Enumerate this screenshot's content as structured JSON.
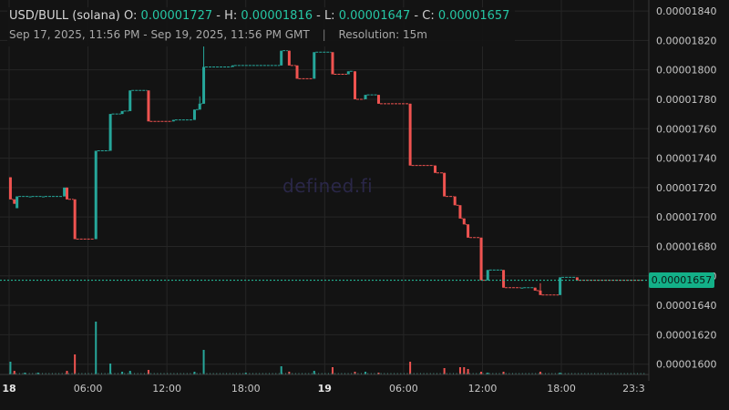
{
  "header": {
    "symbol": "USD/BULL (solana)",
    "open_label": "O:",
    "open": "0.00001727",
    "high_label": "H:",
    "high": "0.00001816",
    "low_label": "L:",
    "low": "0.00001647",
    "close_label": "C:",
    "close": "0.00001657",
    "range": "Sep 17, 2025, 11:56 PM - Sep 19, 2025, 11:56 PM GMT",
    "separator": "|",
    "resolution": "Resolution: 15m"
  },
  "watermark": "defined.fi",
  "last_price_label": "0.00001657",
  "colors": {
    "up": "#26a69a",
    "down": "#ef5350",
    "background": "#131313",
    "grid": "#262626"
  },
  "chart_data": {
    "type": "candlestick",
    "x_tick_labels": [
      "18",
      "06:00",
      "12:00",
      "18:00",
      "19",
      "06:00",
      "12:00",
      "18:00",
      "23:3"
    ],
    "y_tick_labels": [
      "0.00001600",
      "0.00001620",
      "0.00001640",
      "0.00001660",
      "0.00001680",
      "0.00001700",
      "0.00001720",
      "0.00001740",
      "0.00001760",
      "0.00001780",
      "0.00001800",
      "0.00001820",
      "0.00001840"
    ],
    "ylim": [
      1.593e-05,
      1.845e-05
    ],
    "x_range_hours": [
      0,
      48.6
    ],
    "last_price": 1.657e-05,
    "candles": [
      {
        "t": 0.1,
        "o": 1727,
        "h": 1727,
        "l": 1712,
        "c": 1712
      },
      {
        "t": 0.4,
        "o": 1712,
        "h": 1712,
        "l": 1709,
        "c": 1709
      },
      {
        "t": 0.6,
        "o": 1706,
        "h": 1714,
        "l": 1706,
        "c": 1714
      },
      {
        "t": 1.6,
        "o": 1714,
        "h": 1714,
        "l": 1714,
        "c": 1714
      },
      {
        "t": 2.6,
        "o": 1714,
        "h": 1714,
        "l": 1714,
        "c": 1714
      },
      {
        "t": 4.2,
        "o": 1714,
        "h": 1720,
        "l": 1714,
        "c": 1720
      },
      {
        "t": 4.4,
        "o": 1720,
        "h": 1720,
        "l": 1712,
        "c": 1712
      },
      {
        "t": 5.0,
        "o": 1712,
        "h": 1712,
        "l": 1685,
        "c": 1685
      },
      {
        "t": 6.6,
        "o": 1685,
        "h": 1745,
        "l": 1685,
        "c": 1745
      },
      {
        "t": 7.7,
        "o": 1745,
        "h": 1770,
        "l": 1745,
        "c": 1770
      },
      {
        "t": 8.6,
        "o": 1770,
        "h": 1772,
        "l": 1770,
        "c": 1772
      },
      {
        "t": 9.2,
        "o": 1772,
        "h": 1786,
        "l": 1772,
        "c": 1786
      },
      {
        "t": 10.6,
        "o": 1786,
        "h": 1786,
        "l": 1765,
        "c": 1765
      },
      {
        "t": 12.5,
        "o": 1765,
        "h": 1766,
        "l": 1765,
        "c": 1766
      },
      {
        "t": 14.1,
        "o": 1766,
        "h": 1773,
        "l": 1766,
        "c": 1773
      },
      {
        "t": 14.5,
        "o": 1773,
        "h": 1782,
        "l": 1773,
        "c": 1777
      },
      {
        "t": 14.8,
        "o": 1777,
        "h": 1816,
        "l": 1777,
        "c": 1802
      },
      {
        "t": 17.0,
        "o": 1802,
        "h": 1803,
        "l": 1802,
        "c": 1803
      },
      {
        "t": 20.7,
        "o": 1803,
        "h": 1813,
        "l": 1803,
        "c": 1813
      },
      {
        "t": 21.3,
        "o": 1813,
        "h": 1813,
        "l": 1803,
        "c": 1803
      },
      {
        "t": 21.9,
        "o": 1803,
        "h": 1803,
        "l": 1794,
        "c": 1794
      },
      {
        "t": 23.2,
        "o": 1794,
        "h": 1812,
        "l": 1794,
        "c": 1812
      },
      {
        "t": 24.6,
        "o": 1812,
        "h": 1812,
        "l": 1797,
        "c": 1797
      },
      {
        "t": 25.8,
        "o": 1797,
        "h": 1799,
        "l": 1797,
        "c": 1799
      },
      {
        "t": 26.3,
        "o": 1799,
        "h": 1799,
        "l": 1780,
        "c": 1780
      },
      {
        "t": 27.1,
        "o": 1780,
        "h": 1783,
        "l": 1780,
        "c": 1783
      },
      {
        "t": 28.1,
        "o": 1783,
        "h": 1783,
        "l": 1777,
        "c": 1777
      },
      {
        "t": 30.5,
        "o": 1777,
        "h": 1777,
        "l": 1735,
        "c": 1735
      },
      {
        "t": 32.4,
        "o": 1735,
        "h": 1735,
        "l": 1730,
        "c": 1730
      },
      {
        "t": 33.1,
        "o": 1730,
        "h": 1730,
        "l": 1714,
        "c": 1714
      },
      {
        "t": 33.9,
        "o": 1714,
        "h": 1714,
        "l": 1708,
        "c": 1708
      },
      {
        "t": 34.3,
        "o": 1708,
        "h": 1708,
        "l": 1699,
        "c": 1699
      },
      {
        "t": 34.6,
        "o": 1699,
        "h": 1699,
        "l": 1695,
        "c": 1695
      },
      {
        "t": 34.9,
        "o": 1695,
        "h": 1695,
        "l": 1686,
        "c": 1686
      },
      {
        "t": 35.9,
        "o": 1686,
        "h": 1686,
        "l": 1657,
        "c": 1657
      },
      {
        "t": 36.4,
        "o": 1657,
        "h": 1664,
        "l": 1657,
        "c": 1664
      },
      {
        "t": 37.6,
        "o": 1664,
        "h": 1664,
        "l": 1652,
        "c": 1652
      },
      {
        "t": 39.0,
        "o": 1652,
        "h": 1652,
        "l": 1652,
        "c": 1652
      },
      {
        "t": 40.0,
        "o": 1652,
        "h": 1652,
        "l": 1650,
        "c": 1650
      },
      {
        "t": 40.4,
        "o": 1650,
        "h": 1655,
        "l": 1647,
        "c": 1647
      },
      {
        "t": 41.9,
        "o": 1647,
        "h": 1659,
        "l": 1647,
        "c": 1659
      },
      {
        "t": 43.2,
        "o": 1659,
        "h": 1659,
        "l": 1657,
        "c": 1657
      }
    ],
    "volume": [
      {
        "t": 0.1,
        "v": 14,
        "dir": "up"
      },
      {
        "t": 0.4,
        "v": 4,
        "dir": "down"
      },
      {
        "t": 1.2,
        "v": 2,
        "dir": "up"
      },
      {
        "t": 2.2,
        "v": 2,
        "dir": "up"
      },
      {
        "t": 4.4,
        "v": 4,
        "dir": "down"
      },
      {
        "t": 5.0,
        "v": 22,
        "dir": "down"
      },
      {
        "t": 6.6,
        "v": 58,
        "dir": "up"
      },
      {
        "t": 7.7,
        "v": 12,
        "dir": "up"
      },
      {
        "t": 8.6,
        "v": 3,
        "dir": "up"
      },
      {
        "t": 9.2,
        "v": 4,
        "dir": "up"
      },
      {
        "t": 10.6,
        "v": 5,
        "dir": "down"
      },
      {
        "t": 14.1,
        "v": 3,
        "dir": "up"
      },
      {
        "t": 14.8,
        "v": 27,
        "dir": "up"
      },
      {
        "t": 18.0,
        "v": 2,
        "dir": "up"
      },
      {
        "t": 20.7,
        "v": 9,
        "dir": "up"
      },
      {
        "t": 21.3,
        "v": 3,
        "dir": "down"
      },
      {
        "t": 23.2,
        "v": 4,
        "dir": "up"
      },
      {
        "t": 24.6,
        "v": 8,
        "dir": "down"
      },
      {
        "t": 26.3,
        "v": 3,
        "dir": "down"
      },
      {
        "t": 27.1,
        "v": 3,
        "dir": "up"
      },
      {
        "t": 28.1,
        "v": 2,
        "dir": "down"
      },
      {
        "t": 30.5,
        "v": 14,
        "dir": "down"
      },
      {
        "t": 33.1,
        "v": 7,
        "dir": "down"
      },
      {
        "t": 34.3,
        "v": 8,
        "dir": "down"
      },
      {
        "t": 34.6,
        "v": 8,
        "dir": "down"
      },
      {
        "t": 34.9,
        "v": 6,
        "dir": "down"
      },
      {
        "t": 35.9,
        "v": 3,
        "dir": "down"
      },
      {
        "t": 36.4,
        "v": 2,
        "dir": "up"
      },
      {
        "t": 37.6,
        "v": 3,
        "dir": "down"
      },
      {
        "t": 40.4,
        "v": 3,
        "dir": "down"
      },
      {
        "t": 41.9,
        "v": 2,
        "dir": "up"
      }
    ]
  }
}
